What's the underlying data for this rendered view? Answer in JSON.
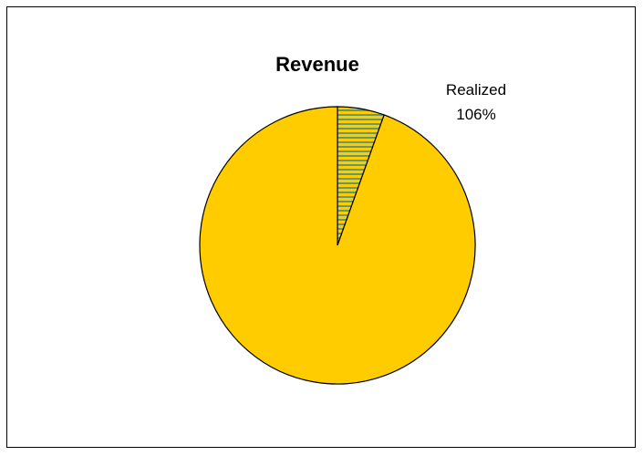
{
  "chart_data": {
    "type": "pie",
    "title": "Revenue",
    "start_angle_deg": 0,
    "direction": "clockwise",
    "slices": [
      {
        "label": "Realized",
        "value_label": "106%",
        "share": 0.055,
        "fill": "#ffcc00",
        "stripe_color": "#669966",
        "pattern": "horizontal-stripes"
      },
      {
        "label": "",
        "value_label": "",
        "share": 0.945,
        "fill": "#ffcc00",
        "pattern": "solid"
      }
    ],
    "outline_color": "#000000"
  }
}
